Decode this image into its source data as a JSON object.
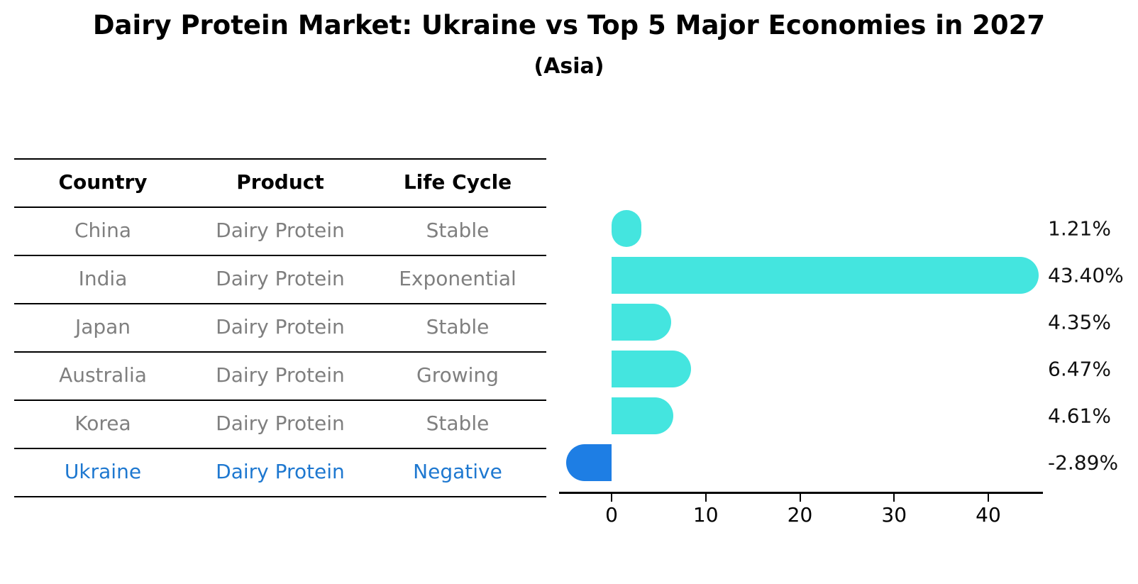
{
  "title": "Dairy Protein Market: Ukraine vs Top 5 Major Economies in 2027",
  "subtitle": "(Asia)",
  "table": {
    "headers": [
      "Country",
      "Product",
      "Life Cycle"
    ],
    "rows": [
      {
        "country": "China",
        "product": "Dairy Protein",
        "life_cycle": "Stable",
        "highlight": false
      },
      {
        "country": "India",
        "product": "Dairy Protein",
        "life_cycle": "Exponential",
        "highlight": false
      },
      {
        "country": "Japan",
        "product": "Dairy Protein",
        "life_cycle": "Stable",
        "highlight": false
      },
      {
        "country": "Australia",
        "product": "Dairy Protein",
        "life_cycle": "Growing",
        "highlight": false
      },
      {
        "country": "Korea",
        "product": "Dairy Protein",
        "life_cycle": "Stable",
        "highlight": false
      },
      {
        "country": "Ukraine",
        "product": "Dairy Protein",
        "life_cycle": "Negative",
        "highlight": true
      }
    ]
  },
  "chart_data": {
    "type": "bar",
    "orientation": "horizontal",
    "title": "Dairy Protein Market: Ukraine vs Top 5 Major Economies in 2027",
    "subtitle": "(Asia)",
    "categories": [
      "China",
      "India",
      "Japan",
      "Australia",
      "Korea",
      "Ukraine"
    ],
    "values": [
      1.21,
      43.4,
      4.35,
      6.47,
      4.61,
      -2.89
    ],
    "value_labels": [
      "1.21%",
      "43.40%",
      "4.35%",
      "6.47%",
      "4.61%",
      "-2.89%"
    ],
    "x_ticks": [
      0,
      10,
      20,
      30,
      40
    ],
    "xlim": [
      -5.6,
      45.8
    ],
    "grid": false,
    "legend": null,
    "bar_color": "#44e5df",
    "highlight_bar_color": "#1e7ee4",
    "highlight_index": 5
  },
  "colors": {
    "bar_cyan": "#44e5df",
    "bar_blue": "#1e7ee4",
    "highlight_text_blue": "#1e78d0",
    "table_text_gray": "#7f7f7f",
    "axis_black": "#000000",
    "background": "#ffffff"
  }
}
